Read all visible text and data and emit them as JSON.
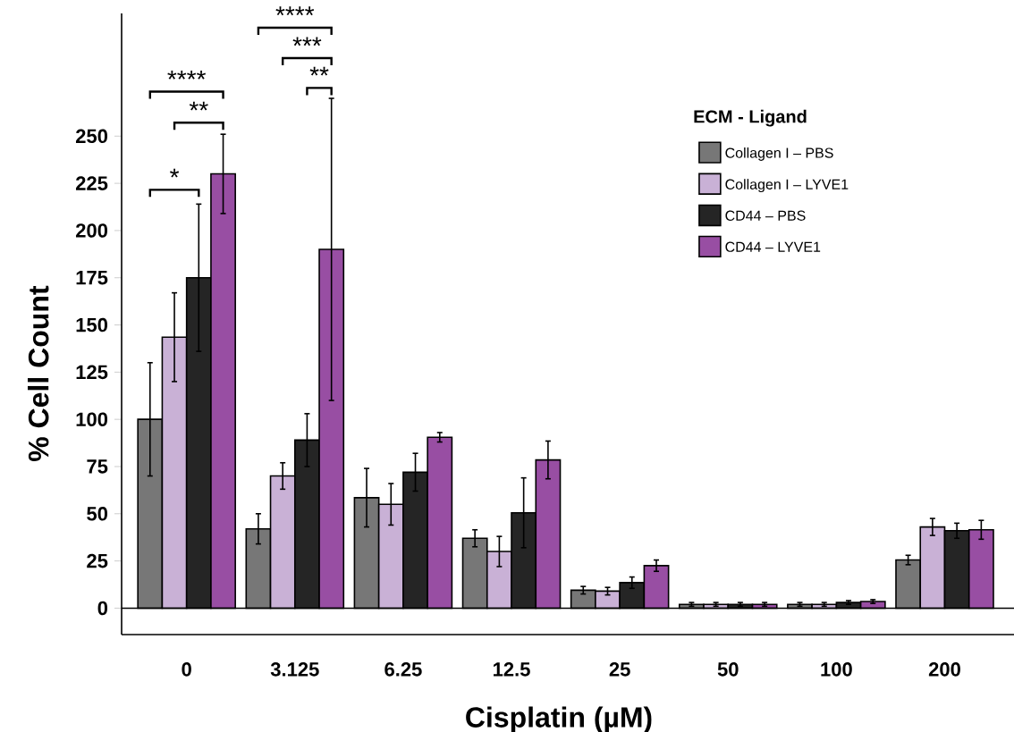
{
  "chart_data": {
    "type": "bar",
    "xlabel": "Cisplatin (µM)",
    "ylabel": "% Cell Count",
    "legend_title": "ECM - Ligand",
    "legend": "top right",
    "categories": [
      "0",
      "3.125",
      "6.25",
      "12.5",
      "25",
      "50",
      "100",
      "200"
    ],
    "ylim": [
      -14,
      315
    ],
    "yticks": [
      0,
      25,
      50,
      75,
      100,
      125,
      150,
      175,
      200,
      225,
      250
    ],
    "series": [
      {
        "name": "Collagen I – PBS",
        "color": "#777777",
        "values": [
          100,
          42,
          58.5,
          37,
          9.5,
          2,
          2,
          25.5
        ],
        "errors": [
          30,
          8,
          15.5,
          4.5,
          2,
          1,
          1,
          2.5
        ]
      },
      {
        "name": "Collagen I – LYVE1",
        "color": "#c9b1d6",
        "values": [
          143.5,
          70,
          55,
          30,
          9,
          2,
          2,
          43
        ],
        "errors": [
          23.5,
          7,
          11,
          8,
          2,
          1,
          1,
          4.5
        ]
      },
      {
        "name": "CD44 – PBS",
        "color": "#252525",
        "values": [
          175,
          89,
          72,
          50.5,
          13.5,
          2,
          3,
          41
        ],
        "errors": [
          39,
          14,
          10,
          18.5,
          3,
          1,
          1,
          4
        ]
      },
      {
        "name": "CD44 – LYVE1",
        "color": "#984ea3",
        "values": [
          230,
          190,
          90.5,
          78.5,
          22.5,
          2,
          3.5,
          41.5
        ],
        "errors": [
          21,
          80,
          2.5,
          10,
          3,
          1,
          1,
          5
        ]
      }
    ],
    "ref_lines": [
      {
        "axis": "y",
        "value": 0,
        "color": "#000000"
      }
    ],
    "annotations": [
      "*",
      "**",
      "****",
      "**",
      "***",
      "****"
    ]
  }
}
